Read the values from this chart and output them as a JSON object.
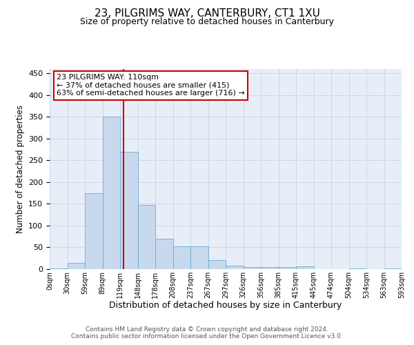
{
  "title": "23, PILGRIMS WAY, CANTERBURY, CT1 1XU",
  "subtitle": "Size of property relative to detached houses in Canterbury",
  "xlabel": "Distribution of detached houses by size in Canterbury",
  "ylabel": "Number of detached properties",
  "bar_values": [
    2,
    15,
    175,
    350,
    270,
    148,
    70,
    53,
    53,
    20,
    8,
    5,
    5,
    5,
    7,
    0,
    0,
    2,
    0,
    2
  ],
  "bin_labels": [
    "0sqm",
    "30sqm",
    "59sqm",
    "89sqm",
    "119sqm",
    "148sqm",
    "178sqm",
    "208sqm",
    "237sqm",
    "267sqm",
    "297sqm",
    "326sqm",
    "356sqm",
    "385sqm",
    "415sqm",
    "445sqm",
    "474sqm",
    "504sqm",
    "534sqm",
    "563sqm",
    "593sqm"
  ],
  "bar_color": "#c8d9ee",
  "bar_edge_color": "#6aaad4",
  "grid_color": "#c8d4e8",
  "background_color": "#e8eef8",
  "red_line_x": 3.7,
  "annotation_line1": "23 PILGRIMS WAY: 110sqm",
  "annotation_line2": "← 37% of detached houses are smaller (415)",
  "annotation_line3": "63% of semi-detached houses are larger (716) →",
  "annotation_box_color": "#ffffff",
  "annotation_box_edge": "#cc0000",
  "ylim": [
    0,
    460
  ],
  "yticks": [
    0,
    50,
    100,
    150,
    200,
    250,
    300,
    350,
    400,
    450
  ],
  "footer_line1": "Contains HM Land Registry data © Crown copyright and database right 2024.",
  "footer_line2": "Contains public sector information licensed under the Open Government Licence v3.0."
}
